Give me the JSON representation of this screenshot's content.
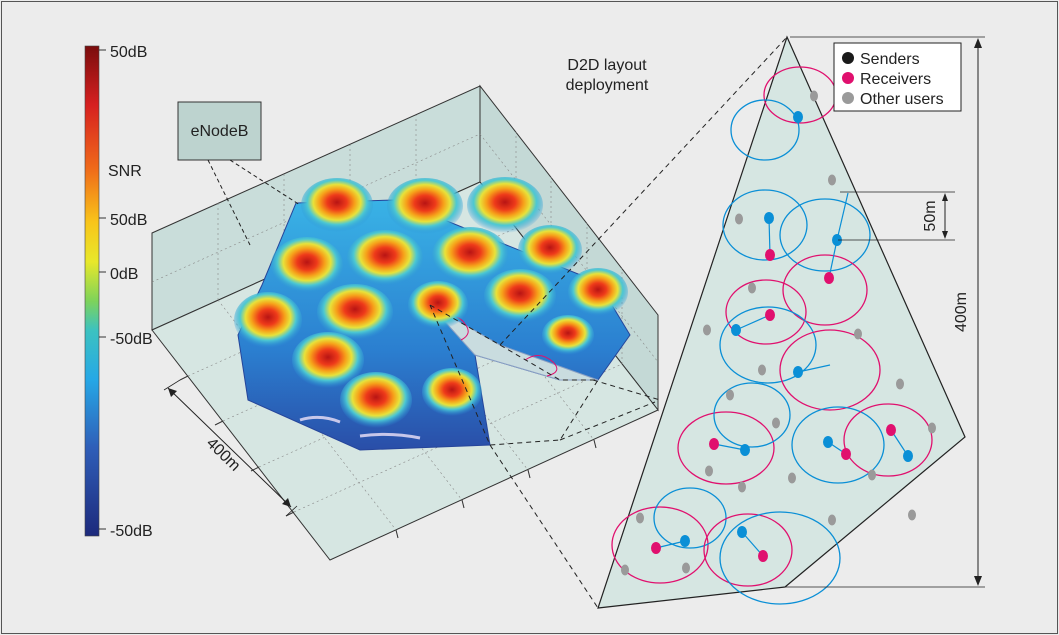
{
  "colorbar": {
    "top_label": "50dB",
    "snr_label": "SNR",
    "label_50": "50dB",
    "label_0": "0dB",
    "label_neg50_mid": "-50dB",
    "bottom_label": "-50dB"
  },
  "enodeb_label": "eNodeB",
  "title_line1": "D2D layout",
  "title_line2": "deployment",
  "dimension_400_left": "400m",
  "dimension_400_right": "400m",
  "dimension_50": "50m",
  "legend": {
    "items": [
      {
        "label": "Senders",
        "color": "#1a1a1a"
      },
      {
        "label": "Receivers",
        "color": "#e0106e"
      },
      {
        "label": "Other users",
        "color": "#9a9a9a"
      }
    ]
  },
  "colors": {
    "sender": "#0a8fd6",
    "receiver": "#e0106e",
    "other": "#9a9a9a",
    "panel": "#d6e6e2"
  }
}
